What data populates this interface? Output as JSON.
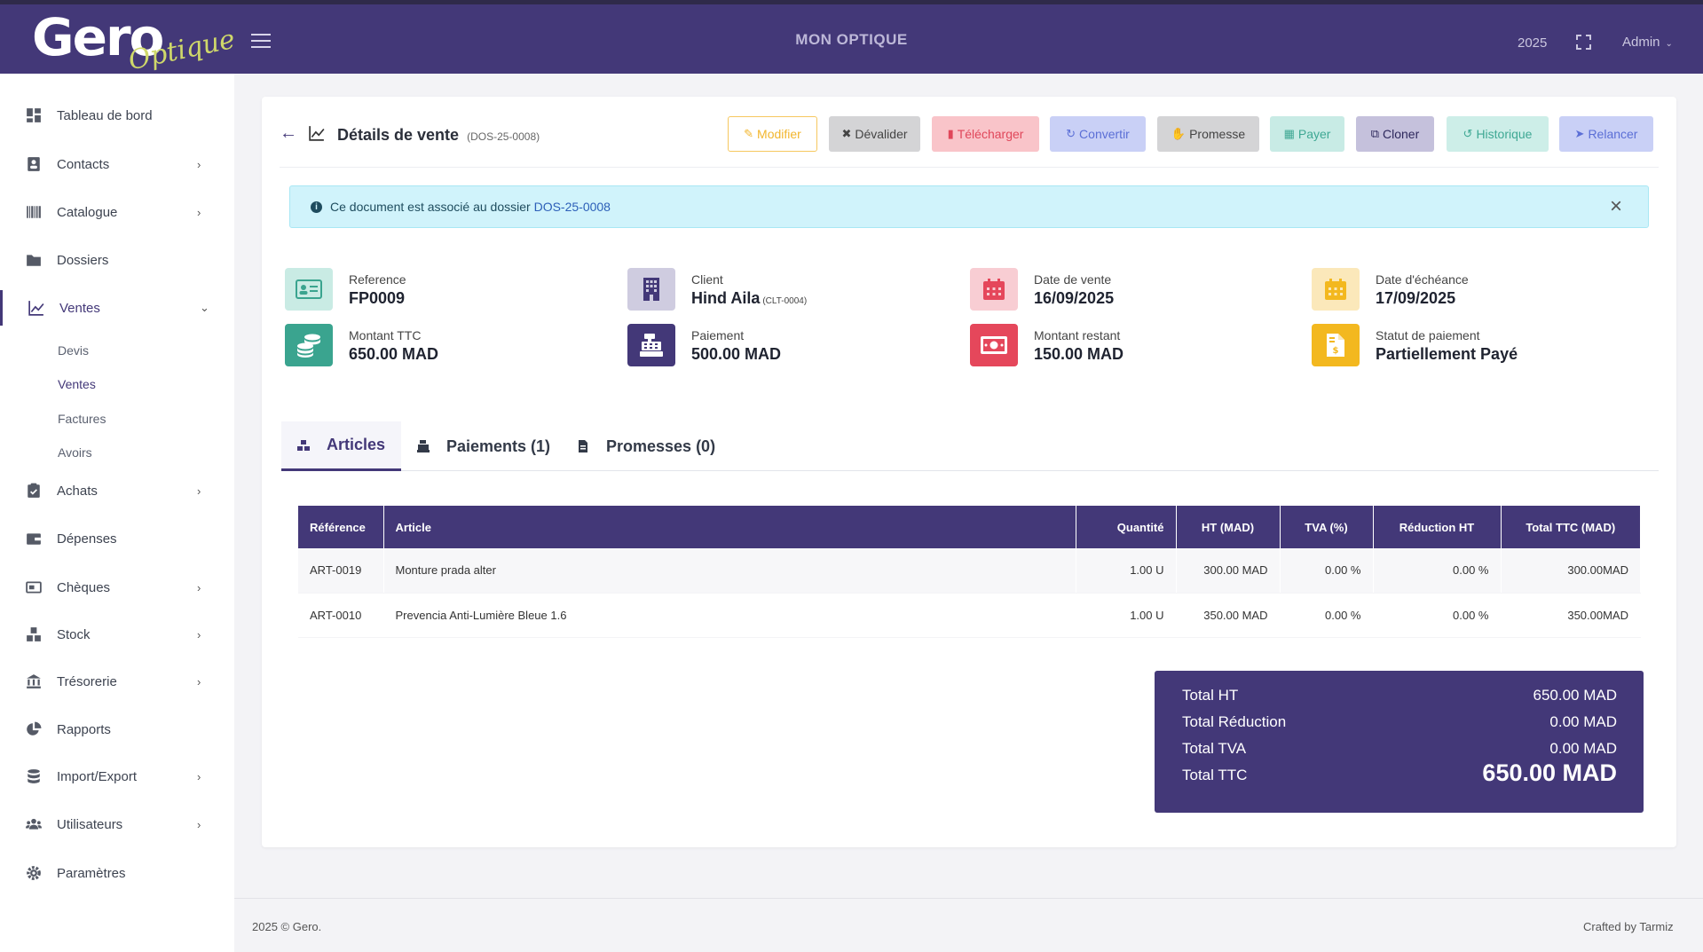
{
  "header": {
    "logo_text": "Gero",
    "logo_subtext": "Optique",
    "app_title": "MON OPTIQUE",
    "year": "2025",
    "user": "Admin"
  },
  "sidebar": {
    "items": [
      {
        "label": "Tableau de bord",
        "icon": "dashboard-icon"
      },
      {
        "label": "Contacts",
        "icon": "contacts-icon"
      },
      {
        "label": "Catalogue",
        "icon": "barcode-icon"
      },
      {
        "label": "Dossiers",
        "icon": "folder-icon"
      },
      {
        "label": "Ventes",
        "icon": "chart-line-icon"
      },
      {
        "label": "Achats",
        "icon": "clipboard-icon"
      },
      {
        "label": "Dépenses",
        "icon": "wallet-icon"
      },
      {
        "label": "Chèques",
        "icon": "money-check-icon"
      },
      {
        "label": "Stock",
        "icon": "boxes-icon"
      },
      {
        "label": "Trésorerie",
        "icon": "bank-icon"
      },
      {
        "label": "Rapports",
        "icon": "pie-chart-icon"
      },
      {
        "label": "Import/Export",
        "icon": "database-icon"
      },
      {
        "label": "Utilisateurs",
        "icon": "users-icon"
      },
      {
        "label": "Paramètres",
        "icon": "gear-icon"
      }
    ],
    "ventes_sub": [
      "Devis",
      "Ventes",
      "Factures",
      "Avoirs"
    ]
  },
  "page": {
    "title": "Détails de vente",
    "title_ref": "(DOS-25-0008)"
  },
  "toolbar": {
    "modifier": "Modifier",
    "devalider": "Dévalider",
    "telecharger": "Télécharger",
    "convertir": "Convertir",
    "promesse": "Promesse",
    "payer": "Payer",
    "cloner": "Cloner",
    "historique": "Historique",
    "relancer": "Relancer"
  },
  "alert": {
    "text": "Ce document est associé au dossier ",
    "link": "DOS-25-0008"
  },
  "stats": {
    "reference": {
      "label": "Reference",
      "value": "FP0009"
    },
    "client": {
      "label": "Client",
      "value": "Hind Aila",
      "code": "(CLT-0004)"
    },
    "date_vente": {
      "label": "Date de vente",
      "value": "16/09/2025"
    },
    "date_echeance": {
      "label": "Date d'échéance",
      "value": "17/09/2025"
    },
    "montant_ttc": {
      "label": "Montant TTC",
      "value": "650.00 MAD"
    },
    "paiement": {
      "label": "Paiement",
      "value": "500.00 MAD"
    },
    "montant_restant": {
      "label": "Montant restant",
      "value": "150.00 MAD"
    },
    "statut": {
      "label": "Statut de paiement",
      "value": "Partiellement Payé"
    }
  },
  "tabs": {
    "articles": "Articles",
    "paiements": "Paiements (1)",
    "promesses": "Promesses (0)"
  },
  "table": {
    "headers": {
      "reference": "Référence",
      "article": "Article",
      "quantite": "Quantité",
      "ht": "HT (MAD)",
      "tva": "TVA (%)",
      "reduction": "Réduction HT",
      "total": "Total TTC (MAD)"
    },
    "rows": [
      {
        "reference": "ART-0019",
        "article": "Monture prada alter",
        "quantite": "1.00 U",
        "ht": "300.00 MAD",
        "tva": "0.00 %",
        "reduction": "0.00 %",
        "total": "300.00MAD"
      },
      {
        "reference": "ART-0010",
        "article": "Prevencia Anti-Lumière Bleue 1.6",
        "quantite": "1.00 U",
        "ht": "350.00 MAD",
        "tva": "0.00 %",
        "reduction": "0.00 %",
        "total": "350.00MAD"
      }
    ]
  },
  "totals": {
    "ht": {
      "label": "Total HT",
      "value": "650.00 MAD"
    },
    "reduction": {
      "label": "Total Réduction",
      "value": "0.00 MAD"
    },
    "tva": {
      "label": "Total TVA",
      "value": "0.00 MAD"
    },
    "ttc": {
      "label": "Total TTC",
      "value": "650.00 MAD"
    }
  },
  "footer": {
    "left": "2025 © Gero.",
    "right": "Crafted by Tarmiz"
  },
  "colors": {
    "primary": "#433878",
    "sidebar_bg": "#ffffff",
    "page_bg": "#f3f3f6"
  }
}
